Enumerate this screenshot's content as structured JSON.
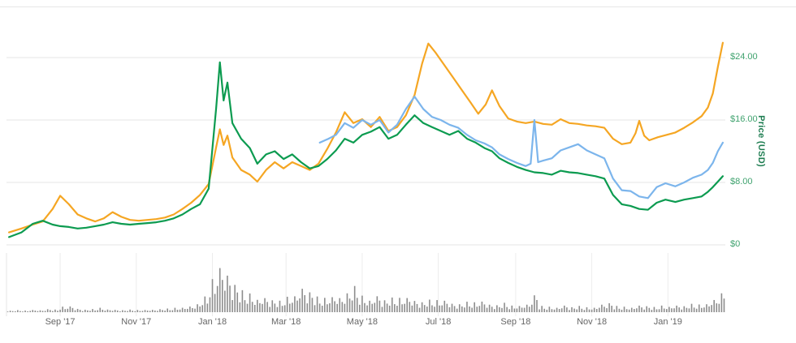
{
  "colors": {
    "background": "#ffffff",
    "grid": "#e6e6e6",
    "tick": "#ececec",
    "x_label": "#666666",
    "y_label": "#3fa26e",
    "y_title": "#1e7d51",
    "orange": "#f5a623",
    "green": "#0c9b50",
    "blue": "#7cb5ec",
    "volume": "#8d8d8d"
  },
  "chart_data": {
    "type": "line",
    "title": "",
    "legend": "none",
    "grid": "horizontal",
    "domain": {
      "start": "2017-07-20",
      "end": "2019-02-16",
      "price_min": 0,
      "price_max": 26.7
    },
    "x_axis": {
      "ticks": [
        {
          "label": "Sep '17",
          "date": "2017-09-01"
        },
        {
          "label": "Nov '17",
          "date": "2017-11-01"
        },
        {
          "label": "Jan '18",
          "date": "2018-01-01"
        },
        {
          "label": "Mar '18",
          "date": "2018-03-01"
        },
        {
          "label": "May '18",
          "date": "2018-05-01"
        },
        {
          "label": "Jul '18",
          "date": "2018-07-01"
        },
        {
          "label": "Sep '18",
          "date": "2018-09-01"
        },
        {
          "label": "Nov '18",
          "date": "2018-11-01"
        },
        {
          "label": "Jan '19",
          "date": "2019-01-01"
        }
      ]
    },
    "y_axis": {
      "title": "Price (USD)",
      "position": "right",
      "ticks": [
        {
          "label": "$24.00",
          "value": 24
        },
        {
          "label": "$16.00",
          "value": 16
        },
        {
          "label": "$8.00",
          "value": 8
        },
        {
          "label": "$0",
          "value": 0
        }
      ]
    },
    "series": [
      {
        "name": "orange-series",
        "color": "#f5a623",
        "points": [
          [
            "2017-07-22",
            1.6
          ],
          [
            "2017-08-01",
            2.1
          ],
          [
            "2017-08-10",
            2.6
          ],
          [
            "2017-08-18",
            3.0
          ],
          [
            "2017-08-26",
            4.6
          ],
          [
            "2017-09-01",
            6.3
          ],
          [
            "2017-09-08",
            5.2
          ],
          [
            "2017-09-15",
            3.9
          ],
          [
            "2017-09-22",
            3.4
          ],
          [
            "2017-09-29",
            3.0
          ],
          [
            "2017-10-06",
            3.4
          ],
          [
            "2017-10-13",
            4.2
          ],
          [
            "2017-10-20",
            3.6
          ],
          [
            "2017-10-27",
            3.2
          ],
          [
            "2017-11-03",
            3.1
          ],
          [
            "2017-11-10",
            3.2
          ],
          [
            "2017-11-17",
            3.3
          ],
          [
            "2017-11-24",
            3.5
          ],
          [
            "2017-12-01",
            3.9
          ],
          [
            "2017-12-08",
            4.6
          ],
          [
            "2017-12-15",
            5.4
          ],
          [
            "2017-12-22",
            6.4
          ],
          [
            "2017-12-29",
            7.8
          ],
          [
            "2018-01-04",
            12.5
          ],
          [
            "2018-01-07",
            14.8
          ],
          [
            "2018-01-10",
            12.8
          ],
          [
            "2018-01-13",
            14.0
          ],
          [
            "2018-01-17",
            11.2
          ],
          [
            "2018-01-24",
            9.6
          ],
          [
            "2018-01-31",
            9.0
          ],
          [
            "2018-02-06",
            8.1
          ],
          [
            "2018-02-13",
            9.6
          ],
          [
            "2018-02-20",
            10.6
          ],
          [
            "2018-02-27",
            9.8
          ],
          [
            "2018-03-06",
            10.6
          ],
          [
            "2018-03-13",
            10.1
          ],
          [
            "2018-03-20",
            9.6
          ],
          [
            "2018-03-27",
            10.4
          ],
          [
            "2018-04-03",
            12.3
          ],
          [
            "2018-04-10",
            14.4
          ],
          [
            "2018-04-17",
            17.0
          ],
          [
            "2018-04-24",
            15.6
          ],
          [
            "2018-05-01",
            16.1
          ],
          [
            "2018-05-08",
            15.1
          ],
          [
            "2018-05-15",
            16.4
          ],
          [
            "2018-05-22",
            14.6
          ],
          [
            "2018-05-29",
            15.1
          ],
          [
            "2018-06-05",
            16.6
          ],
          [
            "2018-06-12",
            19.2
          ],
          [
            "2018-06-18",
            23.2
          ],
          [
            "2018-06-23",
            25.8
          ],
          [
            "2018-06-29",
            24.6
          ],
          [
            "2018-07-06",
            23.0
          ],
          [
            "2018-07-13",
            21.4
          ],
          [
            "2018-07-20",
            19.8
          ],
          [
            "2018-07-27",
            18.2
          ],
          [
            "2018-08-02",
            16.8
          ],
          [
            "2018-08-08",
            18.0
          ],
          [
            "2018-08-13",
            19.8
          ],
          [
            "2018-08-19",
            17.8
          ],
          [
            "2018-08-26",
            16.2
          ],
          [
            "2018-09-02",
            15.8
          ],
          [
            "2018-09-09",
            15.6
          ],
          [
            "2018-09-16",
            15.8
          ],
          [
            "2018-09-23",
            15.5
          ],
          [
            "2018-09-30",
            15.4
          ],
          [
            "2018-10-07",
            16.1
          ],
          [
            "2018-10-14",
            15.6
          ],
          [
            "2018-10-21",
            15.5
          ],
          [
            "2018-10-28",
            15.3
          ],
          [
            "2018-11-04",
            15.2
          ],
          [
            "2018-11-11",
            15.0
          ],
          [
            "2018-11-18",
            13.6
          ],
          [
            "2018-11-25",
            12.9
          ],
          [
            "2018-12-02",
            13.1
          ],
          [
            "2018-12-06",
            14.3
          ],
          [
            "2018-12-09",
            15.9
          ],
          [
            "2018-12-13",
            14.0
          ],
          [
            "2018-12-17",
            13.4
          ],
          [
            "2018-12-24",
            13.8
          ],
          [
            "2018-12-31",
            14.1
          ],
          [
            "2019-01-07",
            14.4
          ],
          [
            "2019-01-14",
            15.0
          ],
          [
            "2019-01-21",
            15.7
          ],
          [
            "2019-01-28",
            16.5
          ],
          [
            "2019-02-02",
            17.6
          ],
          [
            "2019-02-06",
            19.4
          ],
          [
            "2019-02-10",
            22.8
          ],
          [
            "2019-02-14",
            25.9
          ]
        ]
      },
      {
        "name": "green-series",
        "color": "#0c9b50",
        "points": [
          [
            "2017-07-22",
            1.0
          ],
          [
            "2017-08-01",
            1.6
          ],
          [
            "2017-08-10",
            2.7
          ],
          [
            "2017-08-18",
            3.1
          ],
          [
            "2017-08-26",
            2.6
          ],
          [
            "2017-09-01",
            2.4
          ],
          [
            "2017-09-08",
            2.3
          ],
          [
            "2017-09-15",
            2.1
          ],
          [
            "2017-09-22",
            2.2
          ],
          [
            "2017-09-29",
            2.4
          ],
          [
            "2017-10-06",
            2.6
          ],
          [
            "2017-10-13",
            2.9
          ],
          [
            "2017-10-20",
            2.7
          ],
          [
            "2017-10-27",
            2.6
          ],
          [
            "2017-11-03",
            2.7
          ],
          [
            "2017-11-10",
            2.8
          ],
          [
            "2017-11-17",
            2.9
          ],
          [
            "2017-11-24",
            3.1
          ],
          [
            "2017-12-01",
            3.4
          ],
          [
            "2017-12-08",
            3.9
          ],
          [
            "2017-12-15",
            4.6
          ],
          [
            "2017-12-22",
            5.2
          ],
          [
            "2017-12-29",
            7.2
          ],
          [
            "2018-01-04",
            17.5
          ],
          [
            "2018-01-07",
            23.4
          ],
          [
            "2018-01-10",
            18.5
          ],
          [
            "2018-01-13",
            20.8
          ],
          [
            "2018-01-17",
            15.6
          ],
          [
            "2018-01-24",
            13.6
          ],
          [
            "2018-01-31",
            12.4
          ],
          [
            "2018-02-06",
            10.4
          ],
          [
            "2018-02-13",
            11.6
          ],
          [
            "2018-02-20",
            12.0
          ],
          [
            "2018-02-27",
            11.0
          ],
          [
            "2018-03-06",
            11.6
          ],
          [
            "2018-03-13",
            10.6
          ],
          [
            "2018-03-20",
            9.8
          ],
          [
            "2018-03-27",
            10.1
          ],
          [
            "2018-04-03",
            11.0
          ],
          [
            "2018-04-10",
            12.1
          ],
          [
            "2018-04-17",
            13.6
          ],
          [
            "2018-04-24",
            13.1
          ],
          [
            "2018-05-01",
            14.1
          ],
          [
            "2018-05-08",
            14.5
          ],
          [
            "2018-05-15",
            15.1
          ],
          [
            "2018-05-22",
            13.6
          ],
          [
            "2018-05-29",
            14.1
          ],
          [
            "2018-06-05",
            15.4
          ],
          [
            "2018-06-12",
            16.6
          ],
          [
            "2018-06-19",
            15.6
          ],
          [
            "2018-06-26",
            15.1
          ],
          [
            "2018-07-03",
            14.6
          ],
          [
            "2018-07-10",
            14.1
          ],
          [
            "2018-07-17",
            14.6
          ],
          [
            "2018-07-24",
            13.6
          ],
          [
            "2018-07-31",
            13.1
          ],
          [
            "2018-08-07",
            12.4
          ],
          [
            "2018-08-13",
            12.0
          ],
          [
            "2018-08-19",
            11.1
          ],
          [
            "2018-08-26",
            10.5
          ],
          [
            "2018-09-02",
            10.0
          ],
          [
            "2018-09-09",
            9.6
          ],
          [
            "2018-09-16",
            9.3
          ],
          [
            "2018-09-23",
            9.2
          ],
          [
            "2018-09-30",
            9.0
          ],
          [
            "2018-10-07",
            9.5
          ],
          [
            "2018-10-14",
            9.3
          ],
          [
            "2018-10-21",
            9.2
          ],
          [
            "2018-10-28",
            9.0
          ],
          [
            "2018-11-04",
            8.8
          ],
          [
            "2018-11-11",
            8.5
          ],
          [
            "2018-11-18",
            6.4
          ],
          [
            "2018-11-25",
            5.2
          ],
          [
            "2018-12-02",
            5.0
          ],
          [
            "2018-12-09",
            4.6
          ],
          [
            "2018-12-16",
            4.5
          ],
          [
            "2018-12-23",
            5.4
          ],
          [
            "2018-12-30",
            5.8
          ],
          [
            "2019-01-07",
            5.5
          ],
          [
            "2019-01-14",
            5.8
          ],
          [
            "2019-01-21",
            6.0
          ],
          [
            "2019-01-28",
            6.2
          ],
          [
            "2019-02-02",
            6.8
          ],
          [
            "2019-02-06",
            7.4
          ],
          [
            "2019-02-10",
            8.1
          ],
          [
            "2019-02-14",
            8.8
          ]
        ]
      },
      {
        "name": "blue-series",
        "color": "#7cb5ec",
        "points": [
          [
            "2018-03-28",
            13.1
          ],
          [
            "2018-04-04",
            13.6
          ],
          [
            "2018-04-10",
            14.1
          ],
          [
            "2018-04-17",
            15.6
          ],
          [
            "2018-04-24",
            15.0
          ],
          [
            "2018-05-01",
            16.0
          ],
          [
            "2018-05-08",
            15.4
          ],
          [
            "2018-05-15",
            16.0
          ],
          [
            "2018-05-22",
            14.4
          ],
          [
            "2018-05-29",
            15.4
          ],
          [
            "2018-06-05",
            17.4
          ],
          [
            "2018-06-12",
            19.0
          ],
          [
            "2018-06-19",
            17.4
          ],
          [
            "2018-06-26",
            16.4
          ],
          [
            "2018-07-03",
            16.0
          ],
          [
            "2018-07-10",
            15.4
          ],
          [
            "2018-07-17",
            15.0
          ],
          [
            "2018-07-24",
            14.1
          ],
          [
            "2018-07-31",
            13.4
          ],
          [
            "2018-08-07",
            13.0
          ],
          [
            "2018-08-13",
            12.5
          ],
          [
            "2018-08-19",
            11.6
          ],
          [
            "2018-08-26",
            11.0
          ],
          [
            "2018-09-02",
            10.5
          ],
          [
            "2018-09-09",
            10.1
          ],
          [
            "2018-09-13",
            10.4
          ],
          [
            "2018-09-16",
            16.0
          ],
          [
            "2018-09-19",
            10.6
          ],
          [
            "2018-09-23",
            10.8
          ],
          [
            "2018-09-30",
            11.1
          ],
          [
            "2018-10-07",
            12.1
          ],
          [
            "2018-10-14",
            12.5
          ],
          [
            "2018-10-21",
            12.9
          ],
          [
            "2018-10-28",
            12.1
          ],
          [
            "2018-11-04",
            11.6
          ],
          [
            "2018-11-11",
            11.1
          ],
          [
            "2018-11-18",
            8.5
          ],
          [
            "2018-11-25",
            7.0
          ],
          [
            "2018-12-02",
            6.9
          ],
          [
            "2018-12-09",
            6.2
          ],
          [
            "2018-12-16",
            6.0
          ],
          [
            "2018-12-23",
            7.4
          ],
          [
            "2018-12-30",
            7.9
          ],
          [
            "2019-01-07",
            7.5
          ],
          [
            "2019-01-14",
            8.0
          ],
          [
            "2019-01-21",
            8.6
          ],
          [
            "2019-01-28",
            9.0
          ],
          [
            "2019-02-02",
            9.6
          ],
          [
            "2019-02-06",
            10.5
          ],
          [
            "2019-02-10",
            12.0
          ],
          [
            "2019-02-14",
            13.1
          ]
        ]
      }
    ],
    "volume": {
      "name": "volume",
      "color": "#8d8d8d",
      "scale": "relative-0-100",
      "values": [
        3,
        4,
        3,
        5,
        4,
        6,
        5,
        10,
        13,
        7,
        5,
        6,
        8,
        6,
        5,
        4,
        5,
        4,
        5,
        5,
        6,
        7,
        8,
        10,
        12,
        16,
        30,
        60,
        100,
        78,
        55,
        42,
        34,
        28,
        30,
        24,
        22,
        28,
        36,
        50,
        40,
        30,
        26,
        34,
        30,
        38,
        50,
        30,
        26,
        34,
        24,
        28,
        26,
        32,
        24,
        20,
        24,
        22,
        26,
        18,
        16,
        20,
        18,
        24,
        16,
        14,
        18,
        12,
        14,
        16,
        34,
        12,
        10,
        10,
        14,
        10,
        12,
        9,
        10,
        16,
        18,
        12,
        10,
        10,
        14,
        12,
        10,
        12,
        12,
        14,
        12,
        16,
        14,
        18,
        26,
        38
      ]
    }
  }
}
